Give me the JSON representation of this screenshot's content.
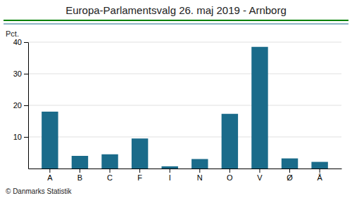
{
  "chart_data": {
    "type": "bar",
    "title": "Europa-Parlamentsvalg 26. maj 2019 - Arnborg",
    "y_label": "Pct.",
    "annotations": [
      "© Danmarks Statistik"
    ],
    "categories": [
      "A",
      "B",
      "C",
      "F",
      "I",
      "N",
      "O",
      "V",
      "Ø",
      "Å"
    ],
    "values": [
      18.0,
      4.0,
      4.5,
      9.5,
      0.7,
      3.0,
      17.3,
      38.5,
      3.2,
      2.1
    ],
    "color": "#1a6b8a",
    "ylim": [
      0,
      40
    ],
    "yticks": [
      10,
      20,
      30,
      40
    ],
    "grid": true
  }
}
